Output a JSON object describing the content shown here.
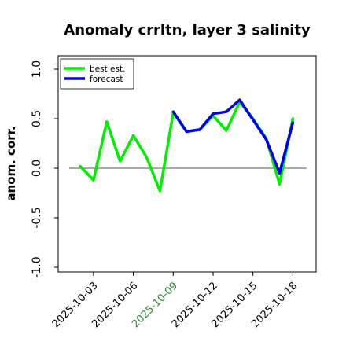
{
  "chart_data": {
    "type": "line",
    "title": "Anomaly crrltn, layer 3 salinity",
    "ylabel": "anom. corr.",
    "xlabel": "",
    "ylim": [
      -1.0,
      1.0
    ],
    "yticks": [
      {
        "value": -1.0,
        "label": "-1.0"
      },
      {
        "value": -0.5,
        "label": "-0.5"
      },
      {
        "value": 0.0,
        "label": "0.0"
      },
      {
        "value": 0.5,
        "label": "0.5"
      },
      {
        "value": 1.0,
        "label": "1.0"
      }
    ],
    "x": [
      "2025-10-02",
      "2025-10-03",
      "2025-10-04",
      "2025-10-05",
      "2025-10-06",
      "2025-10-07",
      "2025-10-08",
      "2025-10-09",
      "2025-10-10",
      "2025-10-11",
      "2025-10-12",
      "2025-10-13",
      "2025-10-14",
      "2025-10-15",
      "2025-10-16",
      "2025-10-17",
      "2025-10-18"
    ],
    "xticks": [
      {
        "value": "2025-10-03",
        "label": "2025-10-03",
        "color": "#000000"
      },
      {
        "value": "2025-10-06",
        "label": "2025-10-06",
        "color": "#000000"
      },
      {
        "value": "2025-10-09",
        "label": "2025-10-09",
        "color": "#2e8b2e"
      },
      {
        "value": "2025-10-12",
        "label": "2025-10-12",
        "color": "#000000"
      },
      {
        "value": "2025-10-15",
        "label": "2025-10-15",
        "color": "#000000"
      },
      {
        "value": "2025-10-18",
        "label": "2025-10-18",
        "color": "#000000"
      }
    ],
    "reference_line": 0.0,
    "legend_position": "top-left",
    "grid": false,
    "series": [
      {
        "name": "best est.",
        "color": "#00ee00",
        "values": [
          0.02,
          -0.12,
          0.47,
          0.07,
          0.33,
          0.11,
          -0.23,
          0.56,
          0.37,
          0.39,
          0.53,
          0.38,
          0.67,
          0.5,
          0.3,
          -0.16,
          0.5
        ]
      },
      {
        "name": "forecast",
        "color": "#0000ee",
        "values": [
          null,
          null,
          null,
          null,
          null,
          null,
          null,
          0.57,
          0.37,
          0.39,
          0.55,
          0.57,
          0.69,
          0.49,
          0.29,
          -0.05,
          0.46
        ]
      }
    ]
  }
}
